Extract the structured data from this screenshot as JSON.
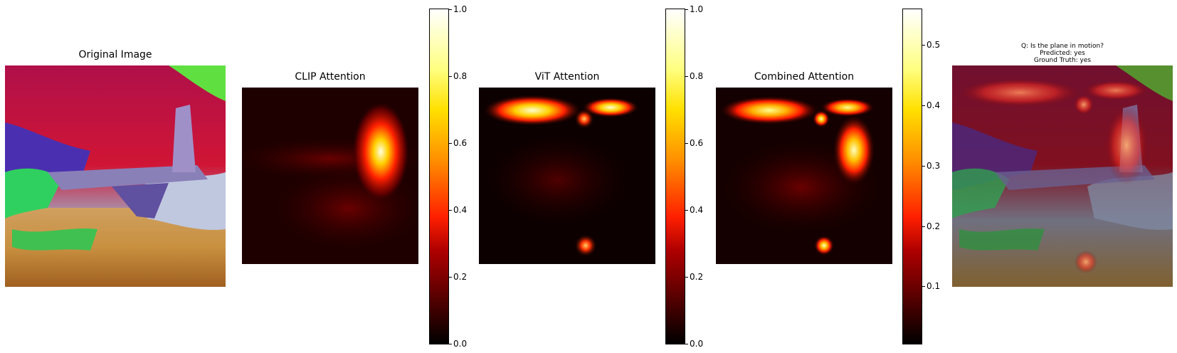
{
  "panels": {
    "original": {
      "title": "Original Image"
    },
    "clip": {
      "title": "CLIP Attention"
    },
    "vit": {
      "title": "ViT Attention"
    },
    "combined": {
      "title": "Combined Attention"
    },
    "overlay": {
      "question": "Q: Is the plane in motion?",
      "predicted": "Predicted: yes",
      "ground_truth": "Ground Truth: yes"
    }
  },
  "colorbars": {
    "clip": {
      "ticks": [
        "0.0",
        "0.2",
        "0.4",
        "0.6",
        "0.8",
        "1.0"
      ],
      "min": 0.0,
      "max": 1.0
    },
    "vit": {
      "ticks": [
        "0.0",
        "0.2",
        "0.4",
        "0.6",
        "0.8",
        "1.0"
      ],
      "min": 0.0,
      "max": 1.0
    },
    "combined": {
      "ticks": [
        "0.1",
        "0.2",
        "0.3",
        "0.4",
        "0.5"
      ],
      "min": 0.005,
      "max": 0.56
    }
  },
  "colors": {
    "colormap": "hot"
  }
}
